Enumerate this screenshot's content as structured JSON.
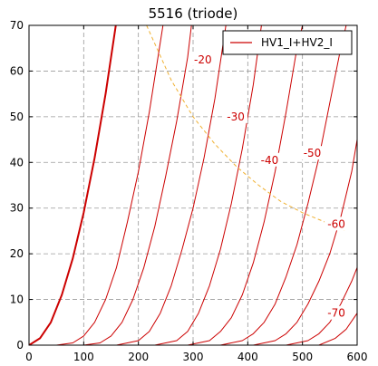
{
  "chart_data": {
    "type": "line",
    "title": "5516 (triode)",
    "xlabel": "",
    "ylabel": "",
    "xlim": [
      0,
      600
    ],
    "ylim": [
      0,
      70
    ],
    "xticks": [
      0,
      100,
      200,
      300,
      400,
      500,
      600
    ],
    "yticks": [
      0,
      10,
      20,
      30,
      40,
      50,
      60,
      70
    ],
    "grid": true,
    "legend": {
      "position": "top-right",
      "entries": [
        "HV1_I+HV2_I"
      ]
    },
    "colors": {
      "curve": "#cc0000",
      "load_line": "#f0b030",
      "grid": "#999999"
    },
    "series": [
      {
        "label": "",
        "bold": true,
        "x": [
          0,
          20,
          40,
          60,
          80,
          100,
          120,
          140,
          160
        ],
        "y": [
          0,
          1.5,
          5,
          11,
          19,
          29,
          41,
          55,
          71
        ]
      },
      {
        "label": "",
        "bold": false,
        "x": [
          50,
          80,
          100,
          120,
          140,
          160,
          180,
          200,
          220,
          245
        ],
        "y": [
          0,
          0.5,
          2,
          5,
          10,
          17,
          27,
          38,
          51,
          70
        ]
      },
      {
        "label": "-20",
        "bold": false,
        "x": [
          100,
          130,
          150,
          170,
          190,
          210,
          230,
          250,
          270,
          290,
          297
        ],
        "y": [
          0,
          0.5,
          2,
          5,
          10,
          17,
          26,
          37,
          49,
          63,
          70
        ]
      },
      {
        "label": "-30",
        "bold": false,
        "x": [
          160,
          200,
          220,
          240,
          260,
          280,
          300,
          320,
          340,
          360
        ],
        "y": [
          0,
          1,
          3,
          7,
          13,
          21,
          30,
          41,
          54,
          70
        ]
      },
      {
        "label": "-40",
        "bold": false,
        "x": [
          230,
          270,
          290,
          310,
          330,
          350,
          370,
          390,
          410,
          425
        ],
        "y": [
          0,
          1,
          3,
          7,
          13,
          21,
          31,
          43,
          57,
          70
        ]
      },
      {
        "label": "-50",
        "bold": false,
        "x": [
          290,
          330,
          350,
          370,
          390,
          410,
          430,
          450,
          470,
          490,
          500
        ],
        "y": [
          0,
          1,
          3,
          6,
          11,
          18,
          27,
          38,
          51,
          65,
          70
        ]
      },
      {
        "label": "-60",
        "bold": false,
        "x": [
          350,
          390,
          410,
          430,
          450,
          470,
          490,
          510,
          530,
          550,
          570,
          580
        ],
        "y": [
          0,
          1,
          2.5,
          5,
          9,
          15,
          22,
          31,
          41,
          53,
          65,
          70
        ]
      },
      {
        "label": "",
        "bold": false,
        "x": [
          410,
          450,
          470,
          490,
          510,
          530,
          550,
          570,
          590,
          600
        ],
        "y": [
          0,
          1,
          2.5,
          5,
          9,
          14,
          20,
          28,
          38,
          45
        ]
      },
      {
        "label": "-70",
        "bold": false,
        "x": [
          470,
          510,
          530,
          550,
          570,
          590,
          600
        ],
        "y": [
          0,
          1,
          2.5,
          5,
          9,
          14,
          17
        ]
      },
      {
        "label": "",
        "bold": false,
        "x": [
          530,
          560,
          580,
          600
        ],
        "y": [
          0,
          1.5,
          3.5,
          7
        ]
      }
    ],
    "labels": [
      {
        "text": "-20",
        "x": 318,
        "y": 62.5
      },
      {
        "text": "-30",
        "x": 378,
        "y": 50
      },
      {
        "text": "-40",
        "x": 440,
        "y": 40.5
      },
      {
        "text": "-50",
        "x": 518,
        "y": 42
      },
      {
        "text": "-60",
        "x": 562,
        "y": 26.5
      },
      {
        "text": "-70",
        "x": 562,
        "y": 7
      }
    ],
    "load_line": {
      "x": [
        215,
        260,
        300,
        340,
        380,
        420,
        460,
        500,
        540,
        580
      ],
      "y": [
        70,
        58,
        50,
        44,
        39,
        35,
        31.5,
        29,
        27,
        25
      ]
    }
  }
}
